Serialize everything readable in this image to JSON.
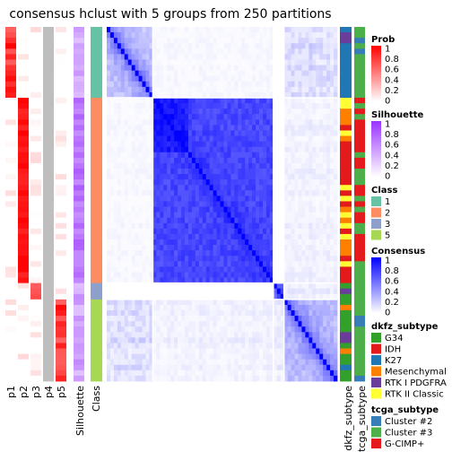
{
  "chart_data": {
    "type": "heatmap",
    "title": "consensus hclust with 5 groups from 250 partitions",
    "group_sizes": [
      13,
      34,
      3,
      15
    ],
    "bottom_labels": [
      "p1",
      "p2",
      "p3",
      "p4",
      "p5",
      "Silhouette",
      "Class",
      "dkfz_subtype",
      "tcga_subtype"
    ],
    "legends": [
      {
        "title": "Prob",
        "kind": "gradient",
        "colors": [
          "#ffffff",
          "#ff0000"
        ],
        "ticks": [
          "1",
          "0.8",
          "0.6",
          "0.4",
          "0.2",
          "0"
        ]
      },
      {
        "title": "Silhouette",
        "kind": "gradient",
        "colors": [
          "#ffffff",
          "#9933ff"
        ],
        "ticks": [
          "1",
          "0.8",
          "0.6",
          "0.4",
          "0.2",
          "0"
        ]
      },
      {
        "title": "Class",
        "kind": "discrete",
        "items": [
          {
            "label": "1",
            "color": "#66c2a5"
          },
          {
            "label": "2",
            "color": "#fc8d62"
          },
          {
            "label": "3",
            "color": "#8da0cb"
          },
          {
            "label": "5",
            "color": "#a6d854"
          }
        ]
      },
      {
        "title": "Consensus",
        "kind": "gradient",
        "colors": [
          "#ffffff",
          "#0000ff"
        ],
        "ticks": [
          "1",
          "0.8",
          "0.6",
          "0.4",
          "0.2",
          "0"
        ]
      },
      {
        "title": "dkfz_subtype",
        "kind": "discrete",
        "items": [
          {
            "label": "G34",
            "color": "#33a02c"
          },
          {
            "label": "IDH",
            "color": "#e31a1c"
          },
          {
            "label": "K27",
            "color": "#1f78b4"
          },
          {
            "label": "Mesenchymal",
            "color": "#ff7f00"
          },
          {
            "label": "RTK I PDGFRA",
            "color": "#6a3d9a"
          },
          {
            "label": "RTK II Classic",
            "color": "#ffff33"
          }
        ]
      },
      {
        "title": "tcga_subtype",
        "kind": "discrete",
        "items": [
          {
            "label": "Cluster #2",
            "color": "#377eb8"
          },
          {
            "label": "Cluster #3",
            "color": "#4daf4a"
          },
          {
            "label": "G-CIMP+",
            "color": "#e41a1c"
          }
        ]
      }
    ]
  }
}
